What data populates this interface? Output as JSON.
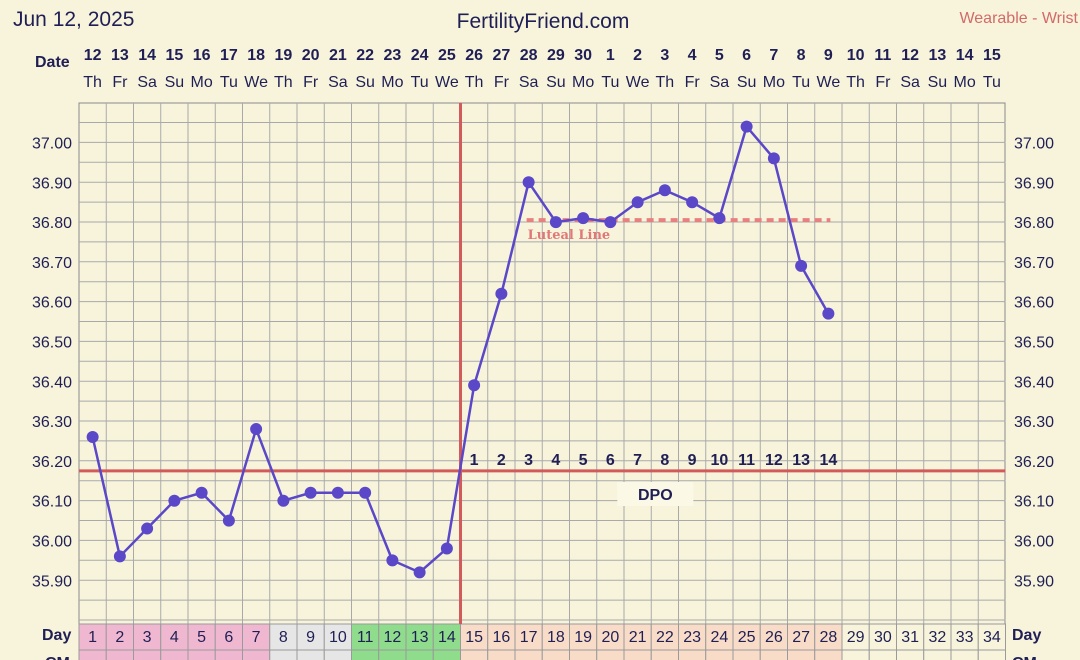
{
  "header": {
    "date": "Jun 12, 2025",
    "site": "FertilityFriend.com",
    "device": "Wearable - Wrist"
  },
  "labels": {
    "date_row": "Date",
    "day_row": "Day",
    "cm_row": "CM",
    "dpo": "DPO",
    "luteal": "Luteal Line"
  },
  "colors": {
    "background": "#f8f4dc",
    "line": "#5a48c8",
    "coverline": "#d25a5a",
    "ovulation": "#d25a5a",
    "luteal": "#e88080",
    "fertile_cell": "#8fdc8c",
    "menses_cell": "#f0b8d0",
    "luteal_cell": "#f8dcc8",
    "follicular_cell": "#e6e6e6",
    "blank_cell": "#f8f4dc"
  },
  "dates": [
    "12",
    "13",
    "14",
    "15",
    "16",
    "17",
    "18",
    "19",
    "20",
    "21",
    "22",
    "23",
    "24",
    "25",
    "26",
    "27",
    "28",
    "29",
    "30",
    "1",
    "2",
    "3",
    "4",
    "5",
    "6",
    "7",
    "8",
    "9",
    "10",
    "11",
    "12",
    "13",
    "14",
    "15"
  ],
  "weekdays": [
    "Th",
    "Fr",
    "Sa",
    "Su",
    "Mo",
    "Tu",
    "We",
    "Th",
    "Fr",
    "Sa",
    "Su",
    "Mo",
    "Tu",
    "We",
    "Th",
    "Fr",
    "Sa",
    "Su",
    "Mo",
    "Tu",
    "We",
    "Th",
    "Fr",
    "Sa",
    "Su",
    "Mo",
    "Tu",
    "We",
    "Th",
    "Fr",
    "Sa",
    "Su",
    "Mo",
    "Tu"
  ],
  "cycle_days": [
    "1",
    "2",
    "3",
    "4",
    "5",
    "6",
    "7",
    "8",
    "9",
    "10",
    "11",
    "12",
    "13",
    "14",
    "15",
    "16",
    "17",
    "18",
    "19",
    "20",
    "21",
    "22",
    "23",
    "24",
    "25",
    "26",
    "27",
    "28",
    "29",
    "30",
    "31",
    "32",
    "33",
    "34"
  ],
  "day_cell_type": [
    "menses",
    "menses",
    "menses",
    "menses",
    "menses",
    "menses",
    "menses",
    "follicular",
    "follicular",
    "follicular",
    "fertile",
    "fertile",
    "fertile",
    "fertile",
    "luteal",
    "luteal",
    "luteal",
    "luteal",
    "luteal",
    "luteal",
    "luteal",
    "luteal",
    "luteal",
    "luteal",
    "luteal",
    "luteal",
    "luteal",
    "luteal",
    "blank",
    "blank",
    "blank",
    "blank",
    "blank",
    "blank"
  ],
  "dpo_numbers": [
    "1",
    "2",
    "3",
    "4",
    "5",
    "6",
    "7",
    "8",
    "9",
    "10",
    "11",
    "12",
    "13",
    "14"
  ],
  "chart_data": {
    "type": "line",
    "title": "",
    "xlabel": "Day",
    "ylabel": "",
    "ylim": [
      35.85,
      37.05
    ],
    "yticks": [
      "37.00",
      "36.90",
      "36.80",
      "36.70",
      "36.60",
      "36.50",
      "36.40",
      "36.30",
      "36.20",
      "36.10",
      "36.00",
      "35.90"
    ],
    "grid": true,
    "x": [
      1,
      2,
      3,
      4,
      5,
      6,
      7,
      8,
      9,
      10,
      11,
      12,
      13,
      14,
      15,
      16,
      17,
      18,
      19,
      20,
      21,
      22,
      23,
      24,
      25,
      26,
      27,
      28
    ],
    "series": [
      {
        "values": [
          36.26,
          35.96,
          36.03,
          36.1,
          36.12,
          36.05,
          36.28,
          36.1,
          36.12,
          36.12,
          36.12,
          35.95,
          35.92,
          35.98,
          36.39,
          36.62,
          36.9,
          36.8,
          36.81,
          36.8,
          36.85,
          36.88,
          36.85,
          36.81,
          37.04,
          36.96,
          36.69,
          36.57
        ]
      }
    ],
    "coverline": 36.175,
    "ovulation_day": 14,
    "luteal_line": {
      "value": 36.805,
      "from_day": 17,
      "to_day": 28
    }
  }
}
